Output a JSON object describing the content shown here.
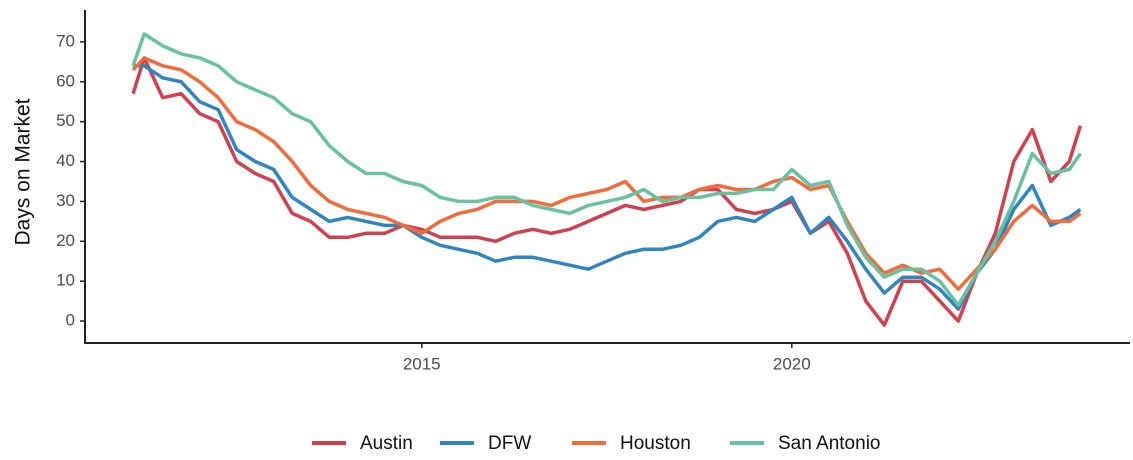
{
  "chart_data": {
    "type": "line",
    "y_label": "Days on Market",
    "x": [
      2011.1,
      2011.25,
      2011.5,
      2011.75,
      2012,
      2012.25,
      2012.5,
      2012.75,
      2013,
      2013.25,
      2013.5,
      2013.75,
      2014,
      2014.25,
      2014.5,
      2014.75,
      2015,
      2015.25,
      2015.5,
      2015.75,
      2016,
      2016.25,
      2016.5,
      2016.75,
      2017,
      2017.25,
      2017.5,
      2017.75,
      2018,
      2018.25,
      2018.5,
      2018.75,
      2019,
      2019.25,
      2019.5,
      2019.75,
      2020,
      2020.25,
      2020.5,
      2020.75,
      2021,
      2021.25,
      2021.5,
      2021.75,
      2022,
      2022.25,
      2022.5,
      2022.75,
      2023,
      2023.25,
      2023.5,
      2023.75,
      2023.9
    ],
    "series": [
      {
        "name": "Austin",
        "color": "#d1404f",
        "values": [
          57,
          66,
          56,
          57,
          52,
          50,
          40,
          37,
          35,
          27,
          25,
          21,
          21,
          22,
          22,
          24,
          23,
          21,
          21,
          21,
          20,
          22,
          23,
          22,
          23,
          25,
          27,
          29,
          28,
          29,
          30,
          33,
          33,
          28,
          27,
          28,
          30,
          22,
          25,
          17,
          5,
          -1,
          10,
          10,
          5,
          0,
          12,
          22,
          40,
          48,
          35,
          40,
          49
        ]
      },
      {
        "name": "DFW",
        "color": "#2e86c1",
        "values": [
          64,
          64,
          61,
          60,
          55,
          53,
          43,
          40,
          38,
          31,
          28,
          25,
          26,
          25,
          24,
          24,
          21,
          19,
          18,
          17,
          15,
          16,
          16,
          15,
          14,
          13,
          15,
          17,
          18,
          18,
          19,
          21,
          25,
          26,
          25,
          28,
          31,
          22,
          26,
          20,
          13,
          7,
          11,
          11,
          8,
          3,
          12,
          18,
          28,
          34,
          24,
          26,
          28
        ]
      },
      {
        "name": "Houston",
        "color": "#f26b3a",
        "values": [
          63,
          66,
          64,
          63,
          60,
          56,
          50,
          48,
          45,
          40,
          34,
          30,
          28,
          27,
          26,
          24,
          22,
          25,
          27,
          28,
          30,
          30,
          30,
          29,
          31,
          32,
          33,
          35,
          30,
          31,
          31,
          33,
          34,
          33,
          33,
          35,
          36,
          33,
          34,
          25,
          17,
          12,
          14,
          12,
          13,
          8,
          13,
          18,
          25,
          29,
          25,
          25,
          27
        ]
      },
      {
        "name": "San Antonio",
        "color": "#66c2a0",
        "values": [
          64,
          72,
          69,
          67,
          66,
          64,
          60,
          58,
          56,
          52,
          50,
          44,
          40,
          37,
          37,
          35,
          34,
          31,
          30,
          30,
          31,
          31,
          29,
          28,
          27,
          29,
          30,
          31,
          33,
          30,
          31,
          31,
          32,
          32,
          33,
          33,
          38,
          34,
          35,
          24,
          16,
          11,
          13,
          13,
          10,
          4,
          12,
          20,
          30,
          42,
          37,
          38,
          42
        ]
      }
    ],
    "xlim": [
      2010.45,
      2024.57
    ],
    "xticks": [
      2015,
      2020
    ],
    "ylim": [
      -5.5,
      78
    ],
    "yticks": [
      0,
      10,
      20,
      30,
      40,
      50,
      60,
      70
    ],
    "grid": false,
    "legend": "bottom"
  }
}
